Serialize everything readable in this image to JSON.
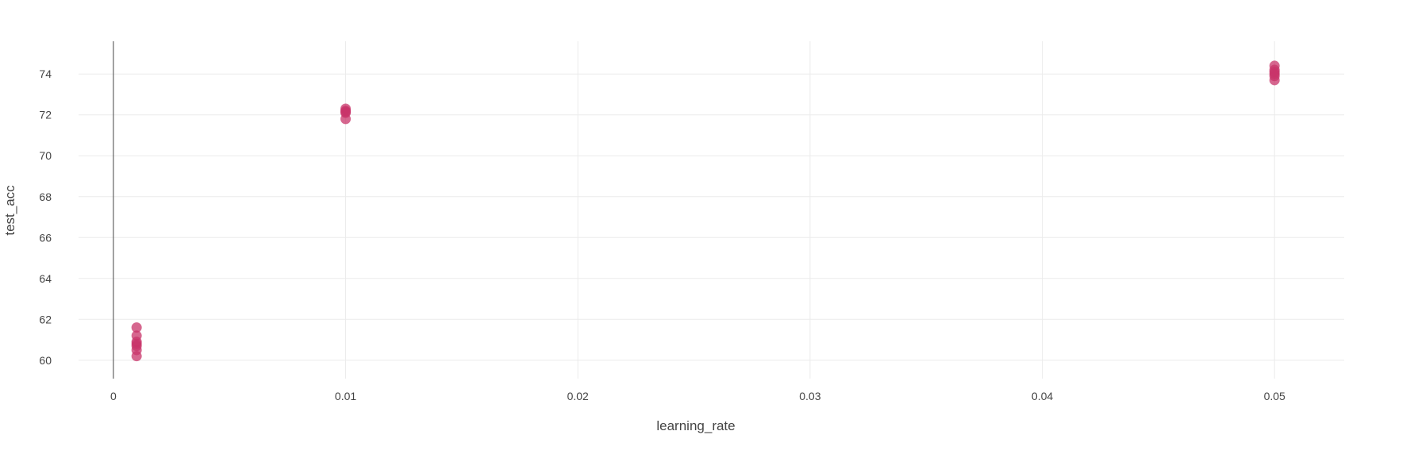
{
  "chart_data": {
    "type": "scatter",
    "title": "",
    "xlabel": "learning_rate",
    "ylabel": "test_acc",
    "xlim": [
      -0.0015,
      0.053
    ],
    "ylim": [
      59.1,
      75.6
    ],
    "xticks": [
      0,
      0.01,
      0.02,
      0.03,
      0.04,
      0.05
    ],
    "xtick_labels": [
      "0",
      "0.01",
      "0.02",
      "0.03",
      "0.04",
      "0.05"
    ],
    "yticks": [
      60,
      62,
      64,
      66,
      68,
      70,
      72,
      74
    ],
    "ytick_labels": [
      "60",
      "62",
      "64",
      "66",
      "68",
      "70",
      "72",
      "74"
    ],
    "grid": true,
    "legend": "none",
    "colors": {
      "marker": "#c8346a",
      "grid": "#ebebeb",
      "zeroline": "#444444",
      "text": "#444444"
    },
    "series": [
      {
        "x": [
          0.001,
          0.001,
          0.001,
          0.001,
          0.001,
          0.001,
          0.001,
          0.01,
          0.01,
          0.01,
          0.01,
          0.01,
          0.05,
          0.05,
          0.05,
          0.05,
          0.05,
          0.05
        ],
        "y": [
          61.6,
          61.2,
          60.9,
          60.8,
          60.7,
          60.5,
          60.2,
          72.3,
          72.2,
          72.15,
          72.1,
          71.8,
          74.4,
          74.2,
          74.1,
          74.0,
          73.9,
          73.7
        ]
      }
    ]
  }
}
